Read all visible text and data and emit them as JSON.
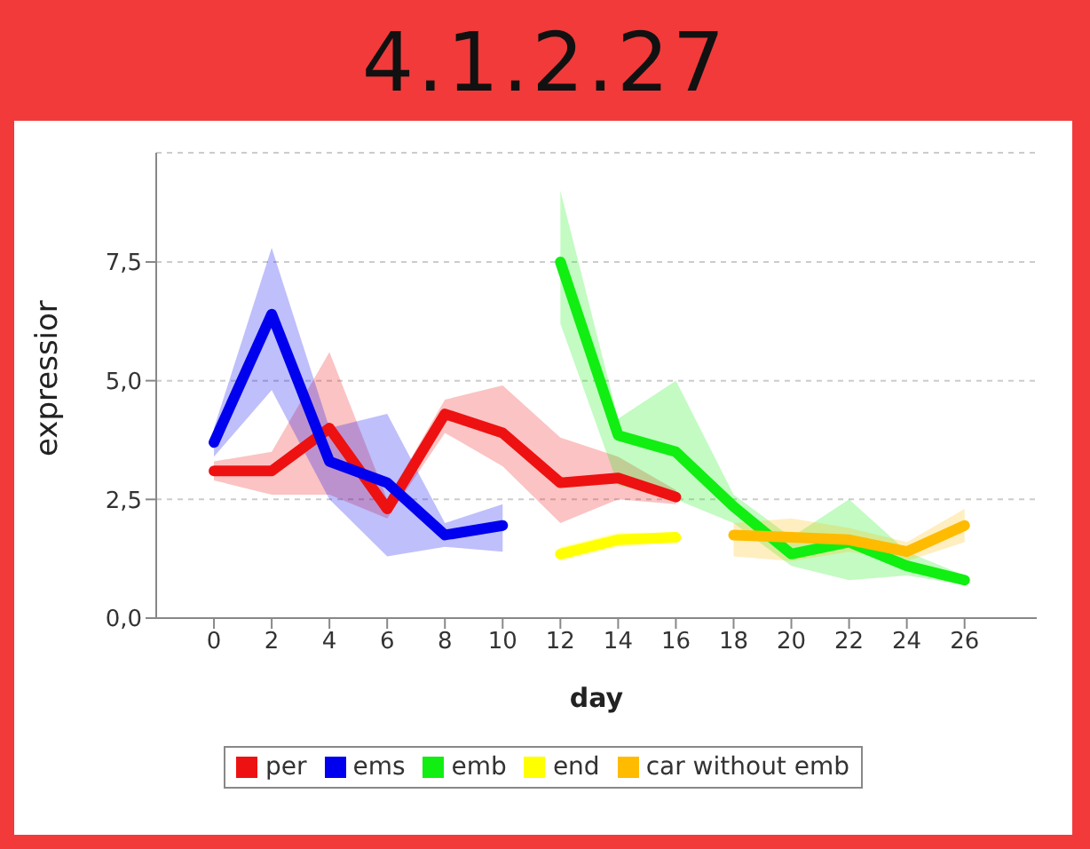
{
  "chart_data": {
    "type": "line",
    "title": "4.1.2.27",
    "xlabel": "day",
    "ylabel": "expressior",
    "xlim": [
      -2,
      28.5
    ],
    "xticks": [
      0,
      2,
      4,
      6,
      8,
      10,
      12,
      14,
      16,
      18,
      20,
      22,
      24,
      26
    ],
    "ylim": [
      0,
      9.8
    ],
    "yticks": [
      {
        "value": 0,
        "label": "0,0"
      },
      {
        "value": 2.5,
        "label": "2,5"
      },
      {
        "value": 5,
        "label": "5,0"
      },
      {
        "value": 7.5,
        "label": "7,5"
      }
    ],
    "grid": "y",
    "legend": "bottom",
    "marker": "none",
    "line_style": "solid",
    "series": [
      {
        "name": "per",
        "color": "#ee1111",
        "x": [
          0,
          2,
          4,
          6,
          8,
          10,
          12,
          14,
          16
        ],
        "values": [
          3.1,
          3.1,
          4.0,
          2.3,
          4.3,
          3.9,
          2.85,
          2.95,
          2.55
        ],
        "lower": [
          2.9,
          2.6,
          2.6,
          2.1,
          3.9,
          3.2,
          2.0,
          2.5,
          2.4
        ],
        "upper": [
          3.3,
          3.5,
          5.6,
          2.5,
          4.6,
          4.9,
          3.8,
          3.4,
          2.7
        ]
      },
      {
        "name": "ems",
        "color": "#0000ee",
        "x": [
          0,
          2,
          4,
          6,
          8,
          10
        ],
        "values": [
          3.7,
          6.4,
          3.3,
          2.85,
          1.75,
          1.95
        ],
        "lower": [
          3.4,
          4.8,
          2.5,
          1.3,
          1.5,
          1.4
        ],
        "upper": [
          4.0,
          7.8,
          4.0,
          4.3,
          2.0,
          2.4
        ]
      },
      {
        "name": "emb",
        "color": "#11ee11",
        "x": [
          12,
          14,
          16,
          18,
          20,
          22,
          24,
          26
        ],
        "values": [
          7.5,
          3.85,
          3.5,
          2.35,
          1.35,
          1.6,
          1.1,
          0.8
        ],
        "lower": [
          6.2,
          2.8,
          2.5,
          2.0,
          1.1,
          0.8,
          0.9,
          0.7
        ],
        "upper": [
          9.0,
          4.2,
          5.0,
          2.6,
          1.7,
          2.5,
          1.4,
          0.9
        ]
      },
      {
        "name": "end",
        "color": "#ffff00",
        "x": [
          12,
          14,
          16
        ],
        "values": [
          1.35,
          1.65,
          1.7
        ],
        "lower": [
          1.2,
          1.5,
          1.6
        ],
        "upper": [
          1.5,
          1.8,
          1.8
        ]
      },
      {
        "name": "car without emb",
        "color": "#ffbb00",
        "x": [
          18,
          20,
          22,
          24,
          26
        ],
        "values": [
          1.75,
          1.7,
          1.65,
          1.4,
          1.95
        ],
        "lower": [
          1.3,
          1.2,
          1.4,
          1.2,
          1.6
        ],
        "upper": [
          2.0,
          2.1,
          1.9,
          1.6,
          2.3
        ]
      }
    ]
  }
}
